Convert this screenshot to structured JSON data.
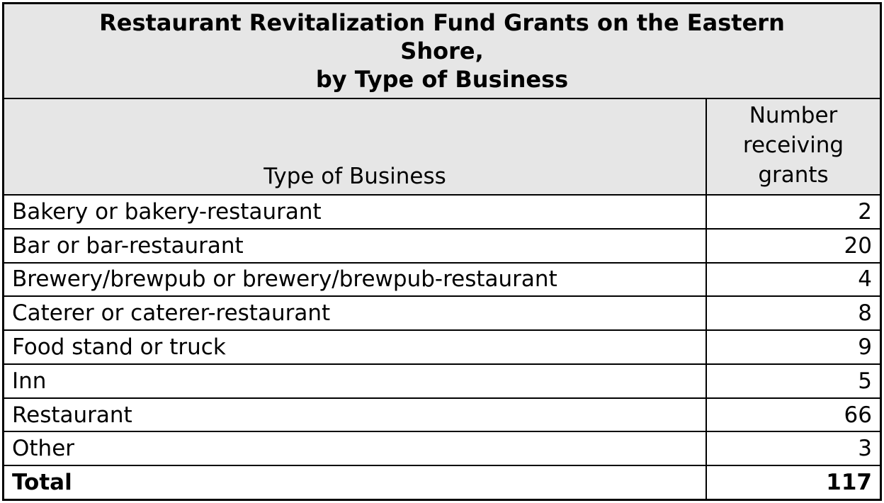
{
  "table": {
    "title_lines": [
      "Restaurant Revitalization Fund Grants on the Eastern",
      "Shore,",
      "by Type of Business"
    ],
    "columns": {
      "business": "Type of Business",
      "grants": "Number receiving grants"
    },
    "rows": [
      {
        "business": "Bakery or bakery-restaurant",
        "grants": "2"
      },
      {
        "business": "Bar or bar-restaurant",
        "grants": "20"
      },
      {
        "business": "Brewery/brewpub or brewery/brewpub-restaurant",
        "grants": "4"
      },
      {
        "business": "Caterer or caterer-restaurant",
        "grants": "8"
      },
      {
        "business": "Food stand or truck",
        "grants": "9"
      },
      {
        "business": "Inn",
        "grants": "5"
      },
      {
        "business": "Restaurant",
        "grants": "66"
      },
      {
        "business": "Other",
        "grants": "3"
      }
    ],
    "total": {
      "business": "Total",
      "grants": "117"
    },
    "colors": {
      "header_bg": "#e6e6e6",
      "row_bg": "#ffffff",
      "border": "#000000",
      "text": "#000000"
    }
  },
  "chart_data": {
    "type": "table",
    "title": "Restaurant Revitalization Fund Grants on the Eastern Shore, by Type of Business",
    "columns": [
      "Type of Business",
      "Number receiving grants"
    ],
    "categories": [
      "Bakery or bakery-restaurant",
      "Bar or bar-restaurant",
      "Brewery/brewpub or brewery/brewpub-restaurant",
      "Caterer or caterer-restaurant",
      "Food stand or truck",
      "Inn",
      "Restaurant",
      "Other"
    ],
    "values": [
      2,
      20,
      4,
      8,
      9,
      5,
      66,
      3
    ],
    "total": 117,
    "layout": {
      "header_background": "#e6e6e6",
      "total_row_bold": true,
      "numbers_alignment": "right"
    }
  }
}
